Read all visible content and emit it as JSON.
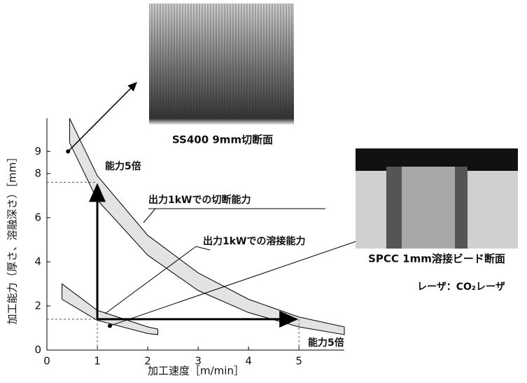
{
  "chart_data": {
    "type": "band",
    "x_label": "加工速度［m/min］",
    "y_label": "加工能力（厚さ、溶融深さ）［mm］",
    "xlim": [
      0,
      5.9
    ],
    "ylim": [
      0,
      10.5
    ],
    "xticks": [
      0,
      1,
      2,
      3,
      4,
      5
    ],
    "yticks": [
      0,
      2,
      4,
      6,
      8,
      9
    ],
    "series": [
      {
        "name": "出力1kWでの切断能力",
        "color": "#e3e3e3",
        "x": [
          0.45,
          1,
          2,
          3,
          4,
          5,
          5.9
        ],
        "upper": [
          10.5,
          7.9,
          5.2,
          3.5,
          2.3,
          1.5,
          1.05
        ],
        "lower": [
          9.4,
          6.8,
          4.3,
          2.7,
          1.7,
          1.05,
          0.7
        ]
      },
      {
        "name": "出力1kWでの溶接能力",
        "color": "#e3e3e3",
        "x": [
          0.3,
          1,
          2,
          2.2
        ],
        "upper": [
          3.0,
          1.8,
          1.05,
          0.95
        ],
        "lower": [
          2.3,
          1.35,
          0.75,
          0.7
        ]
      }
    ],
    "points": [
      {
        "x": 0.42,
        "y": 9,
        "label": "SS400 9mm切断面"
      },
      {
        "x": 1.25,
        "y": 1.1,
        "label": "SPCC 1mm溶接ビード断面"
      }
    ],
    "arrows": {
      "x0": 1,
      "y0": 1.4,
      "y_to": 7.6,
      "x_to": 5,
      "labels": [
        "能力5倍",
        "能力5倍"
      ]
    },
    "note": "レーザ：CO₂レーザ"
  }
}
